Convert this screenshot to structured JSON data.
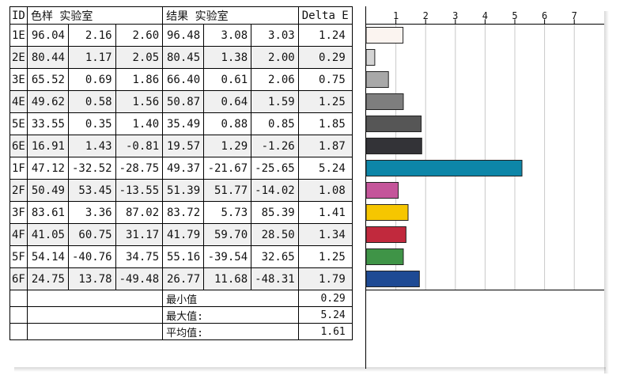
{
  "header": {
    "id": "ID",
    "sample": "色样 实验室",
    "result": "结果 实验室",
    "delta_e": "Delta E"
  },
  "rows": [
    {
      "id": "1E",
      "s": [
        "96.04",
        "2.16",
        "2.60"
      ],
      "r": [
        "96.48",
        "3.08",
        "3.03"
      ],
      "de": "1.24"
    },
    {
      "id": "2E",
      "s": [
        "80.44",
        "1.17",
        "2.05"
      ],
      "r": [
        "80.45",
        "1.38",
        "2.00"
      ],
      "de": "0.29"
    },
    {
      "id": "3E",
      "s": [
        "65.52",
        "0.69",
        "1.86"
      ],
      "r": [
        "66.40",
        "0.61",
        "2.06"
      ],
      "de": "0.75"
    },
    {
      "id": "4E",
      "s": [
        "49.62",
        "0.58",
        "1.56"
      ],
      "r": [
        "50.87",
        "0.64",
        "1.59"
      ],
      "de": "1.25"
    },
    {
      "id": "5E",
      "s": [
        "33.55",
        "0.35",
        "1.40"
      ],
      "r": [
        "35.49",
        "0.88",
        "0.85"
      ],
      "de": "1.85"
    },
    {
      "id": "6E",
      "s": [
        "16.91",
        "1.43",
        "-0.81"
      ],
      "r": [
        "19.57",
        "1.29",
        "-1.26"
      ],
      "de": "1.87"
    },
    {
      "id": "1F",
      "s": [
        "47.12",
        "-32.52",
        "-28.75"
      ],
      "r": [
        "49.37",
        "-21.67",
        "-25.65"
      ],
      "de": "5.24"
    },
    {
      "id": "2F",
      "s": [
        "50.49",
        "53.45",
        "-13.55"
      ],
      "r": [
        "51.39",
        "51.77",
        "-14.02"
      ],
      "de": "1.08"
    },
    {
      "id": "3F",
      "s": [
        "83.61",
        "3.36",
        "87.02"
      ],
      "r": [
        "83.72",
        "5.73",
        "85.39"
      ],
      "de": "1.41"
    },
    {
      "id": "4F",
      "s": [
        "41.05",
        "60.75",
        "31.17"
      ],
      "r": [
        "41.79",
        "59.70",
        "28.50"
      ],
      "de": "1.34"
    },
    {
      "id": "5F",
      "s": [
        "54.14",
        "-40.76",
        "34.75"
      ],
      "r": [
        "55.16",
        "-39.54",
        "32.65"
      ],
      "de": "1.25"
    },
    {
      "id": "6F",
      "s": [
        "24.75",
        "13.78",
        "-49.48"
      ],
      "r": [
        "26.77",
        "11.68",
        "-48.31"
      ],
      "de": "1.79"
    }
  ],
  "summary": [
    {
      "label": "最小值",
      "value": "0.29"
    },
    {
      "label": "最大值:",
      "value": "5.24"
    },
    {
      "label": "平均值:",
      "value": "1.61"
    }
  ],
  "chart_data": {
    "type": "bar",
    "orientation": "horizontal",
    "categories": [
      "1E",
      "2E",
      "3E",
      "4E",
      "5E",
      "6E",
      "1F",
      "2F",
      "3F",
      "4F",
      "5F",
      "6F"
    ],
    "values": [
      1.24,
      0.29,
      0.75,
      1.25,
      1.85,
      1.87,
      5.24,
      1.08,
      1.41,
      1.34,
      1.25,
      1.79
    ],
    "colors": [
      "#fbf4f0",
      "#d4d4d4",
      "#a8a8a8",
      "#7e7e7e",
      "#565656",
      "#333337",
      "#0d86a8",
      "#c4559a",
      "#f6c600",
      "#c1293d",
      "#3f9447",
      "#1e4a94"
    ],
    "ticks": [
      "1",
      "2",
      "3",
      "4",
      "5",
      "6",
      "7"
    ],
    "xlim": [
      0,
      8
    ],
    "grid": true
  }
}
